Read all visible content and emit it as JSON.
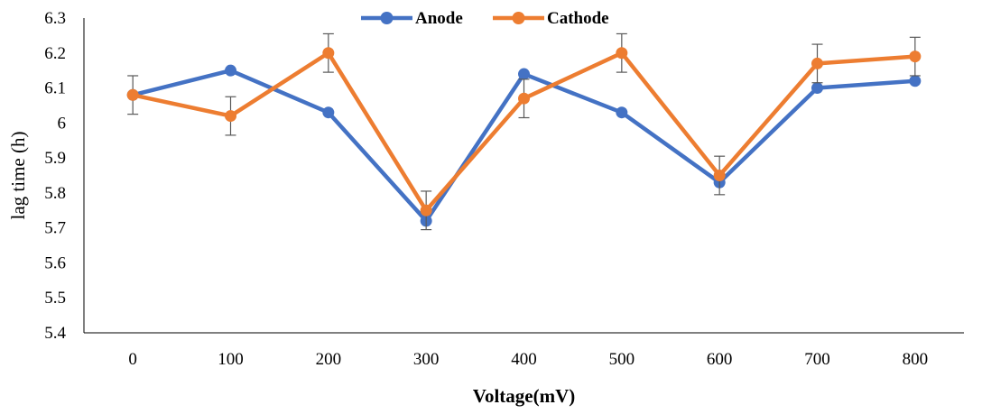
{
  "chart_data": {
    "type": "line",
    "xlabel": "Voltage(mV)",
    "ylabel": "lag time (h)",
    "categories": [
      "0",
      "100",
      "200",
      "300",
      "400",
      "500",
      "600",
      "700",
      "800"
    ],
    "ylim": [
      5.4,
      6.3
    ],
    "yticks": [
      "5.4",
      "5.5",
      "5.6",
      "5.7",
      "5.8",
      "5.9",
      "6",
      "6.1",
      "6.2",
      "6.3"
    ],
    "grid": false,
    "legend_position": "top-center",
    "error_bars": "on Cathode series, approx. ±0.05 h",
    "series": [
      {
        "name": "Anode",
        "color": "#4472C4",
        "values": [
          6.08,
          6.15,
          6.03,
          5.72,
          6.14,
          6.03,
          5.83,
          6.1,
          6.12
        ]
      },
      {
        "name": "Cathode",
        "color": "#ED7D31",
        "values": [
          6.08,
          6.02,
          6.2,
          5.75,
          6.07,
          6.2,
          5.85,
          6.17,
          6.19
        ],
        "errors": [
          0.055,
          0.055,
          0.055,
          0.055,
          0.055,
          0.055,
          0.055,
          0.055,
          0.055
        ]
      }
    ]
  },
  "colors": {
    "axis": "#000000",
    "errorbar": "#595959"
  }
}
